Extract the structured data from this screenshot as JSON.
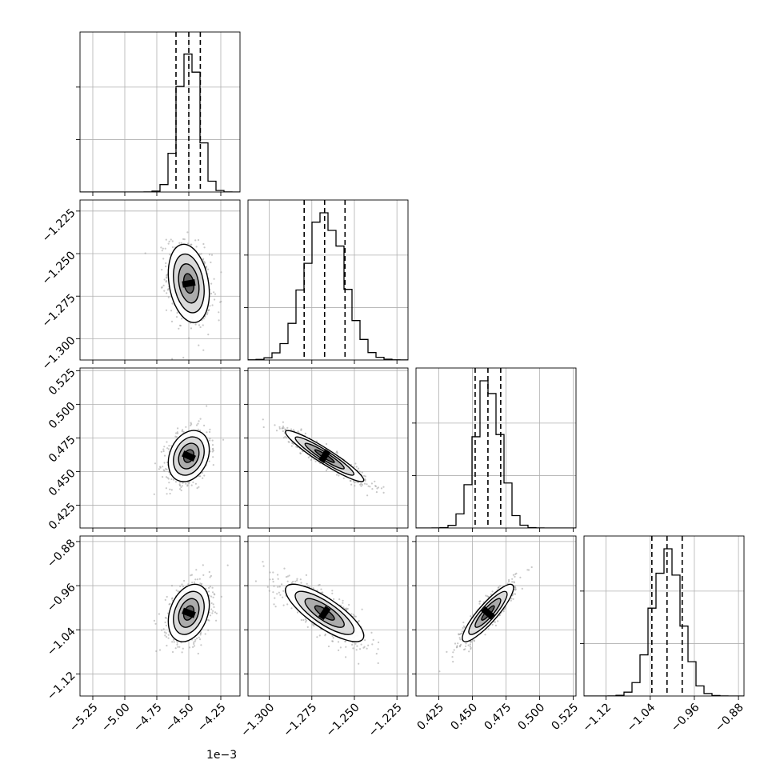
{
  "chart_data": {
    "type": "corner",
    "n_params": 4,
    "colors": {
      "line": "#000000",
      "grid": "#b0b0b0",
      "scatter": "#9a9a9a"
    },
    "grid": true,
    "x_offset_label": "1e−3",
    "params": [
      {
        "range": [
          -5.35,
          -4.1
        ],
        "ticks": [
          -5.25,
          -5.0,
          -4.75,
          -4.5,
          -4.25
        ],
        "tick_labels": [
          "−5.25",
          "−5.00",
          "−4.75",
          "−4.50",
          "−4.25"
        ],
        "quantiles": [
          -4.6,
          -4.5,
          -4.41
        ],
        "median": -4.5,
        "sigma": 0.08,
        "hist_peak": 0.92
      },
      {
        "range": [
          -1.3125,
          -1.2185
        ],
        "ticks": [
          -1.3,
          -1.275,
          -1.25,
          -1.225
        ],
        "tick_labels": [
          "−1.300",
          "−1.275",
          "−1.250",
          "−1.225"
        ],
        "quantiles": [
          -1.2795,
          -1.2675,
          -1.2555
        ],
        "median": -1.2675,
        "sigma": 0.0115,
        "hist_peak": 0.92
      },
      {
        "range": [
          0.408,
          0.527
        ],
        "ticks": [
          0.425,
          0.45,
          0.475,
          0.5,
          0.525
        ],
        "tick_labels": [
          "0.425",
          "0.450",
          "0.475",
          "0.500",
          "0.525"
        ],
        "quantiles": [
          0.452,
          0.4615,
          0.471
        ],
        "median": 0.4615,
        "sigma": 0.0095,
        "hist_peak": 0.92
      },
      {
        "range": [
          -1.16,
          -0.87
        ],
        "ticks": [
          -1.12,
          -1.04,
          -0.96,
          -0.88
        ],
        "tick_labels": [
          "−1.12",
          "−1.04",
          "−0.96",
          "−0.88"
        ],
        "quantiles": [
          -1.037,
          -1.0095,
          -0.982
        ],
        "median": -1.0095,
        "sigma": 0.026,
        "hist_peak": 0.92
      }
    ],
    "correlations": [
      {
        "row": 1,
        "col": 0,
        "rho": -0.25
      },
      {
        "row": 2,
        "col": 0,
        "rho": 0.25
      },
      {
        "row": 2,
        "col": 1,
        "rho": -0.94
      },
      {
        "row": 3,
        "col": 0,
        "rho": 0.3
      },
      {
        "row": 3,
        "col": 1,
        "rho": -0.8
      },
      {
        "row": 3,
        "col": 2,
        "rho": 0.88
      }
    ],
    "contour_levels_sigma": [
      0.5,
      1.0,
      1.5,
      2.0
    ]
  }
}
